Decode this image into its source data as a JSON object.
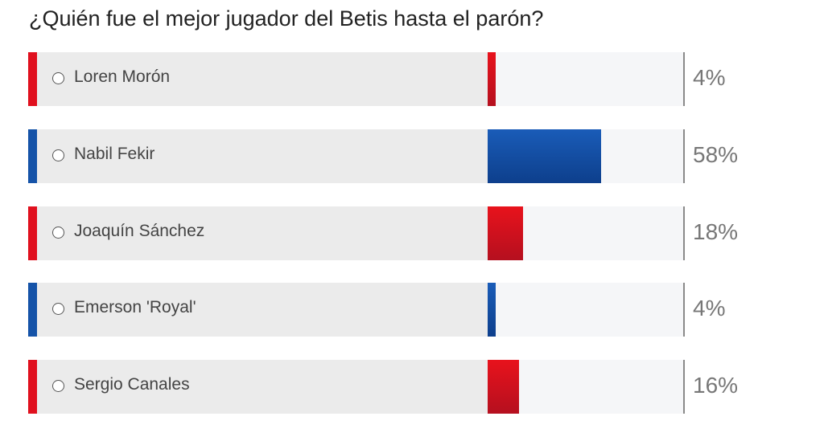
{
  "poll": {
    "title": "¿Quién fue el mejor jugador del Betis hasta el parón?",
    "options": [
      {
        "label": "Loren Morón",
        "percent_text": "4%",
        "percent": 4,
        "color": "red"
      },
      {
        "label": "Nabil Fekir",
        "percent_text": "58%",
        "percent": 58,
        "color": "blue"
      },
      {
        "label": "Joaquín Sánchez",
        "percent_text": "18%",
        "percent": 18,
        "color": "red"
      },
      {
        "label": "Emerson 'Royal'",
        "percent_text": "4%",
        "percent": 4,
        "color": "blue"
      },
      {
        "label": "Sergio Canales",
        "percent_text": "16%",
        "percent": 16,
        "color": "red"
      }
    ]
  },
  "colors": {
    "red_accent": "#e0101e",
    "red_fill_top": "#e8121c",
    "red_fill_bottom": "#b5101f",
    "blue_accent": "#1553a8",
    "blue_fill_top": "#1a5cb8",
    "blue_fill_bottom": "#0d3f8c"
  }
}
